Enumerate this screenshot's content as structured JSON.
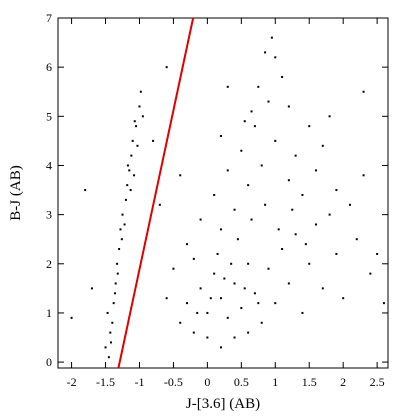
{
  "chart_data": {
    "type": "scatter",
    "x_label": "J-[3.6]  (AB)",
    "y_label": "B-J  (AB)",
    "xlim": [
      -2.2,
      2.66
    ],
    "ylim": [
      -0.12,
      7
    ],
    "xticks": [
      -2,
      -1.5,
      -1,
      -0.5,
      0,
      0.5,
      1,
      1.5,
      2,
      2.5
    ],
    "yticks": [
      0,
      1,
      2,
      3,
      4,
      5,
      6,
      7
    ],
    "color": "#000000",
    "points": [
      [
        -1.45,
        0.1
      ],
      [
        -1.42,
        0.4
      ],
      [
        -1.4,
        0.8
      ],
      [
        -1.38,
        1.2
      ],
      [
        -1.35,
        1.6
      ],
      [
        -1.33,
        2.0
      ],
      [
        -1.3,
        2.3
      ],
      [
        -1.28,
        2.7
      ],
      [
        -1.25,
        3.0
      ],
      [
        -1.2,
        3.3
      ],
      [
        -1.18,
        3.6
      ],
      [
        -1.15,
        3.9
      ],
      [
        -1.12,
        4.2
      ],
      [
        -1.1,
        4.5
      ],
      [
        -1.05,
        4.8
      ],
      [
        -1.0,
        5.2
      ],
      [
        -0.98,
        5.5
      ],
      [
        -1.08,
        3.8
      ],
      [
        -1.13,
        3.5
      ],
      [
        -1.03,
        4.4
      ],
      [
        -1.5,
        0.3
      ],
      [
        -1.47,
        1.0
      ],
      [
        -1.32,
        1.8
      ],
      [
        -1.22,
        2.8
      ],
      [
        -1.17,
        4.0
      ],
      [
        -1.07,
        4.9
      ],
      [
        -1.26,
        2.5
      ],
      [
        -1.36,
        1.4
      ],
      [
        -1.43,
        0.6
      ],
      [
        -0.95,
        5.0
      ],
      [
        -0.4,
        0.8
      ],
      [
        -0.3,
        1.2
      ],
      [
        -0.2,
        0.6
      ],
      [
        -0.1,
        1.5
      ],
      [
        0,
        1.0
      ],
      [
        0.1,
        1.8
      ],
      [
        0.2,
        1.3
      ],
      [
        0.3,
        0.9
      ],
      [
        0.4,
        1.6
      ],
      [
        0.5,
        1.1
      ],
      [
        0.6,
        2.0
      ],
      [
        0.7,
        1.4
      ],
      [
        0.8,
        0.8
      ],
      [
        0.9,
        1.9
      ],
      [
        1.0,
        1.2
      ],
      [
        1.1,
        2.3
      ],
      [
        1.2,
        1.6
      ],
      [
        1.3,
        2.6
      ],
      [
        1.4,
        1.0
      ],
      [
        1.5,
        2.0
      ],
      [
        1.6,
        2.8
      ],
      [
        1.7,
        1.5
      ],
      [
        1.8,
        3.0
      ],
      [
        1.9,
        2.2
      ],
      [
        2.0,
        1.3
      ],
      [
        2.2,
        2.5
      ],
      [
        2.4,
        1.8
      ],
      [
        -0.5,
        1.9
      ],
      [
        -0.6,
        1.3
      ],
      [
        -0.3,
        2.4
      ],
      [
        -0.1,
        2.9
      ],
      [
        0.1,
        3.4
      ],
      [
        0.2,
        2.7
      ],
      [
        0.3,
        3.9
      ],
      [
        0.4,
        3.1
      ],
      [
        0.5,
        4.3
      ],
      [
        0.6,
        3.6
      ],
      [
        0.7,
        4.8
      ],
      [
        0.8,
        4.0
      ],
      [
        0.9,
        5.3
      ],
      [
        1.0,
        4.5
      ],
      [
        1.1,
        5.8
      ],
      [
        1.2,
        3.7
      ],
      [
        0.85,
        6.3
      ],
      [
        0.95,
        6.6
      ],
      [
        0.75,
        5.6
      ],
      [
        0.65,
        5.1
      ],
      [
        0.55,
        4.9
      ],
      [
        1.3,
        4.2
      ],
      [
        1.4,
        3.4
      ],
      [
        1.5,
        4.8
      ],
      [
        1.6,
        3.9
      ],
      [
        1.7,
        4.4
      ],
      [
        1.9,
        3.5
      ],
      [
        2.1,
        3.2
      ],
      [
        0,
        0.5
      ],
      [
        0.2,
        0.3
      ],
      [
        0.4,
        0.5
      ],
      [
        0.6,
        0.6
      ],
      [
        -0.2,
        2.1
      ],
      [
        0.15,
        2.2
      ],
      [
        0.35,
        2.0
      ],
      [
        0.45,
        2.5
      ],
      [
        0.25,
        1.7
      ],
      [
        0.05,
        1.3
      ],
      [
        -0.15,
        1.0
      ],
      [
        0.55,
        1.5
      ],
      [
        0.75,
        1.2
      ],
      [
        0.65,
        2.9
      ],
      [
        0.85,
        3.2
      ],
      [
        1.05,
        2.7
      ],
      [
        1.25,
        3.1
      ],
      [
        1.45,
        2.4
      ],
      [
        0.3,
        5.6
      ],
      [
        1.0,
        6.2
      ],
      [
        1.2,
        5.2
      ],
      [
        2.3,
        3.8
      ],
      [
        2.5,
        2.2
      ],
      [
        1.8,
        5.0
      ],
      [
        -2.0,
        0.9
      ],
      [
        -1.8,
        3.5
      ],
      [
        -1.7,
        1.5
      ],
      [
        -0.7,
        3.2
      ],
      [
        -0.8,
        4.5
      ],
      [
        -0.6,
        6.0
      ],
      [
        0.2,
        4.6
      ],
      [
        -0.4,
        3.8
      ],
      [
        2.6,
        1.2
      ],
      [
        2.3,
        5.5
      ]
    ],
    "line": {
      "x": [
        -1.31,
        -0.21
      ],
      "y": [
        -0.12,
        7
      ],
      "color": "#e00000"
    }
  }
}
